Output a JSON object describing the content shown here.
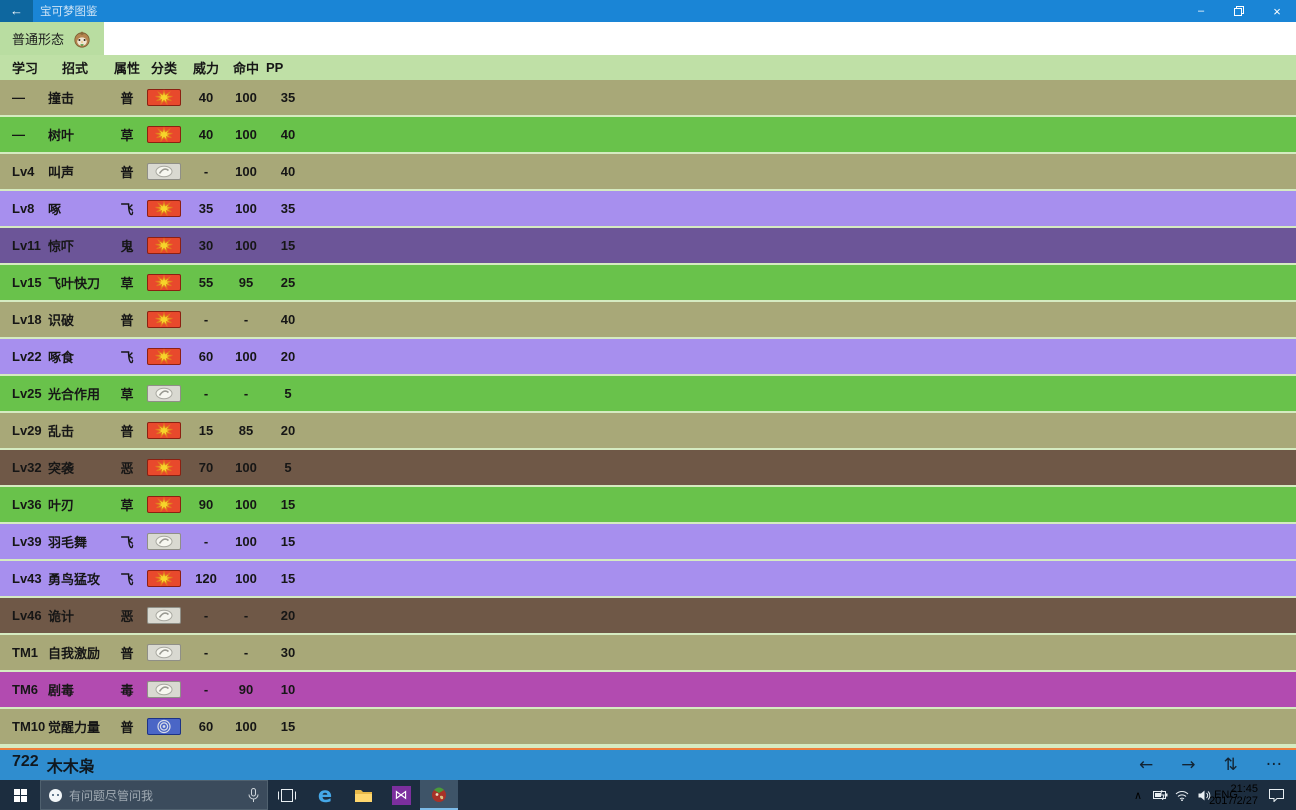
{
  "titlebar": {
    "title": "宝可梦图鉴",
    "back_glyph": "←",
    "minimize_glyph": "–",
    "close_glyph": "×"
  },
  "tabbar": {
    "active_tab": "普通形态"
  },
  "table": {
    "headers": [
      "学习",
      "招式",
      "属性",
      "分类",
      "威力",
      "命中",
      "PP"
    ],
    "rows": [
      {
        "learn": "—",
        "move": "撞击",
        "type": "普",
        "category": "physical",
        "power": "40",
        "accuracy": "100",
        "pp": "35",
        "row_color": "normal"
      },
      {
        "learn": "—",
        "move": "树叶",
        "type": "草",
        "category": "physical",
        "power": "40",
        "accuracy": "100",
        "pp": "40",
        "row_color": "grass"
      },
      {
        "learn": "Lv4",
        "move": "叫声",
        "type": "普",
        "category": "status",
        "power": "-",
        "accuracy": "100",
        "pp": "40",
        "row_color": "normal"
      },
      {
        "learn": "Lv8",
        "move": "啄",
        "type": "飞",
        "category": "physical",
        "power": "35",
        "accuracy": "100",
        "pp": "35",
        "row_color": "flying"
      },
      {
        "learn": "Lv11",
        "move": "惊吓",
        "type": "鬼",
        "category": "physical",
        "power": "30",
        "accuracy": "100",
        "pp": "15",
        "row_color": "ghost"
      },
      {
        "learn": "Lv15",
        "move": "飞叶快刀",
        "type": "草",
        "category": "physical",
        "power": "55",
        "accuracy": "95",
        "pp": "25",
        "row_color": "grass"
      },
      {
        "learn": "Lv18",
        "move": "识破",
        "type": "普",
        "category": "physical",
        "power": "-",
        "accuracy": "-",
        "pp": "40",
        "row_color": "normal"
      },
      {
        "learn": "Lv22",
        "move": "啄食",
        "type": "飞",
        "category": "physical",
        "power": "60",
        "accuracy": "100",
        "pp": "20",
        "row_color": "flying"
      },
      {
        "learn": "Lv25",
        "move": "光合作用",
        "type": "草",
        "category": "status",
        "power": "-",
        "accuracy": "-",
        "pp": "5",
        "row_color": "grass"
      },
      {
        "learn": "Lv29",
        "move": "乱击",
        "type": "普",
        "category": "physical",
        "power": "15",
        "accuracy": "85",
        "pp": "20",
        "row_color": "normal"
      },
      {
        "learn": "Lv32",
        "move": "突袭",
        "type": "恶",
        "category": "physical",
        "power": "70",
        "accuracy": "100",
        "pp": "5",
        "row_color": "dark"
      },
      {
        "learn": "Lv36",
        "move": "叶刃",
        "type": "草",
        "category": "physical",
        "power": "90",
        "accuracy": "100",
        "pp": "15",
        "row_color": "grass"
      },
      {
        "learn": "Lv39",
        "move": "羽毛舞",
        "type": "飞",
        "category": "status",
        "power": "-",
        "accuracy": "100",
        "pp": "15",
        "row_color": "flying"
      },
      {
        "learn": "Lv43",
        "move": "勇鸟猛攻",
        "type": "飞",
        "category": "physical",
        "power": "120",
        "accuracy": "100",
        "pp": "15",
        "row_color": "flying"
      },
      {
        "learn": "Lv46",
        "move": "诡计",
        "type": "恶",
        "category": "status",
        "power": "-",
        "accuracy": "-",
        "pp": "20",
        "row_color": "dark"
      },
      {
        "learn": "TM1",
        "move": "自我激励",
        "type": "普",
        "category": "status",
        "power": "-",
        "accuracy": "-",
        "pp": "30",
        "row_color": "normal"
      },
      {
        "learn": "TM6",
        "move": "剧毒",
        "type": "毒",
        "category": "status",
        "power": "-",
        "accuracy": "90",
        "pp": "10",
        "row_color": "poison"
      },
      {
        "learn": "TM10",
        "move": "觉醒力量",
        "type": "普",
        "category": "special",
        "power": "60",
        "accuracy": "100",
        "pp": "15",
        "row_color": "normal"
      }
    ]
  },
  "type_colors": {
    "normal": "#a8a878",
    "grass": "#69c24b",
    "flying": "#a78fee",
    "ghost": "#6c5598",
    "dark": "#6f5847",
    "poison": "#b24bb0"
  },
  "category_icons": [
    "physical-move-icon",
    "status-move-icon",
    "special-move-icon"
  ],
  "bottombar": {
    "pokemon_number": "722",
    "pokemon_name": "木木枭",
    "prev_glyph": "←",
    "next_glyph": "→",
    "sort_glyph": "⇅",
    "more_glyph": "···"
  },
  "taskbar": {
    "search_placeholder": "有问题尽管问我",
    "tray": {
      "chevron": "∧",
      "language": "ENG",
      "time": "21:45",
      "date": "2017/2/27"
    }
  },
  "accent_colors": {
    "titlebar_blue": "#1a85d6",
    "bottombar_blue": "#2f8dcf",
    "bottombar_orange": "#ee7f3b",
    "header_green": "#bfe0a6",
    "taskbar_navy": "#1c2d3f"
  }
}
